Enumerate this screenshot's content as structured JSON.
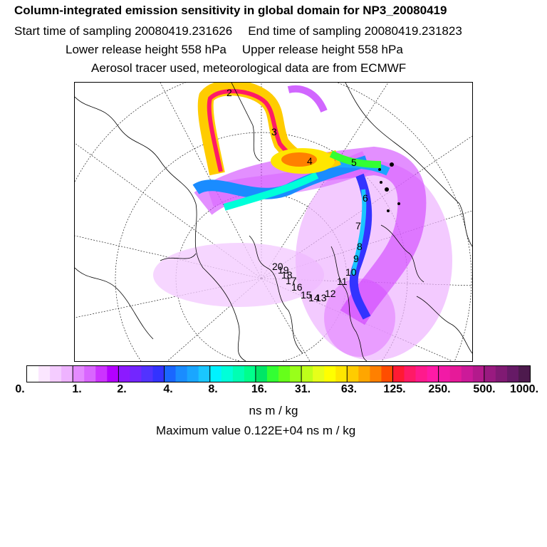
{
  "title": "Column-integrated emission sensitivity in global domain for NP3_20080419",
  "sampling": {
    "start": "Start time of sampling 20080419.231626",
    "end": "End time of sampling 20080419.231823"
  },
  "release": {
    "lower": "Lower release height  558 hPa",
    "upper": "Upper release height  558 hPa"
  },
  "source_note": "Aerosol tracer used, meteorological data are from ECMWF",
  "colorbar": {
    "ticks": [
      "0.",
      "1.",
      "2.",
      "4.",
      "8.",
      "16.",
      "31.",
      "63.",
      "125.",
      "250.",
      "500.",
      "1000."
    ],
    "colors": [
      "#ffffff",
      "#fbe6ff",
      "#f4ccff",
      "#eeb3ff",
      "#e48aff",
      "#d966ff",
      "#cc33ff",
      "#b300ff",
      "#8c1aff",
      "#7326ff",
      "#5233ff",
      "#3333ff",
      "#1a66ff",
      "#1a8cff",
      "#1aa6ff",
      "#1ac6ff",
      "#00f2ff",
      "#00ffd9",
      "#00ffb3",
      "#00ff8c",
      "#00e666",
      "#33ff33",
      "#66ff1a",
      "#99ff1a",
      "#bfff1a",
      "#e6ff1a",
      "#ffff00",
      "#ffe600",
      "#ffcc00",
      "#ffa600",
      "#ff8000",
      "#ff4d00",
      "#ff1a33",
      "#ff1a66",
      "#ff1a8c",
      "#ff1aa6",
      "#f21aa6",
      "#e61a99",
      "#cc1a99",
      "#b31a8c",
      "#991a80",
      "#801a73",
      "#661a66",
      "#4d1a4d"
    ],
    "units": "ns m / kg",
    "max_value": "Maximum value  0.122E+04 ns m / kg"
  },
  "trajectory_labels": [
    "2",
    "3",
    "4",
    "5",
    "6",
    "7",
    "8",
    "9",
    "10",
    "11",
    "12",
    "13",
    "14",
    "15",
    "16",
    "17",
    "18",
    "19",
    "20"
  ]
}
